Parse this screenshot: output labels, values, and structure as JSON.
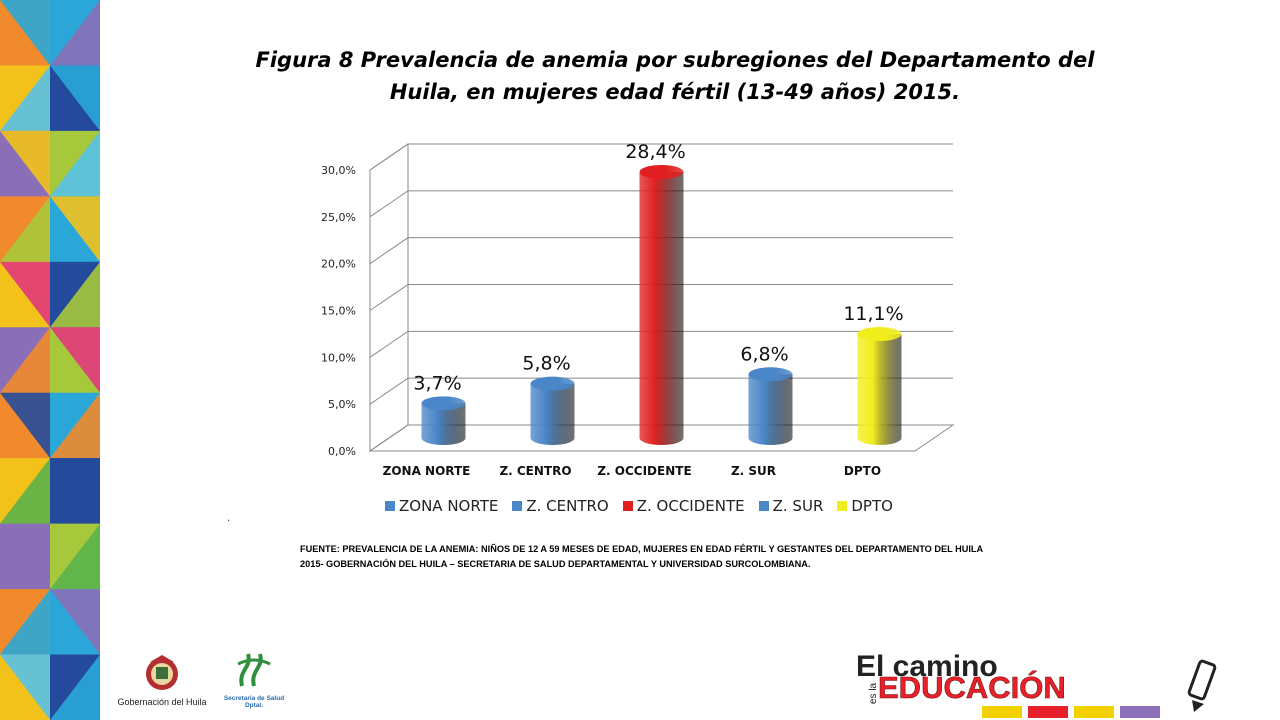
{
  "slide": {
    "title": "Figura 8 Prevalencia de anemia por subregiones del Departamento del Huila, en mujeres edad fértil (13-49 años) 2015.",
    "title_line1": "Figura 8 Prevalencia de anemia por subregiones del Departamento del",
    "title_line2": "Huila, en mujeres edad fértil (13-49 años) 2015.",
    "dot": ".",
    "source_line1": "FUENTE: PREVALENCIA  DE LA ANEMIA: NIÑOS DE 12 A 59 MESES DE EDAD, MUJERES EN EDAD FÉRTIL Y GESTANTES DEL DEPARTAMENTO DEL HUILA",
    "source_line2": "2015- GOBERNACIÓN DEL HUILA – SECRETARIA DE SALUD DEPARTAMENTAL Y UNIVERSIDAD SURCOLOMBIANA."
  },
  "logos": {
    "gobernacion_label": "Gobernación del Huila",
    "salud_label_line1": "Secretaria de Salud",
    "salud_label_line2": "Dptal.",
    "brand_line1": "El camino",
    "brand_es_la": "es la",
    "brand_line2": "EDUCACIÓN"
  },
  "chart_data": {
    "type": "bar",
    "categories": [
      "ZONA NORTE",
      "Z. CENTRO",
      "Z. OCCIDENTE",
      "Z. SUR",
      "DPTO"
    ],
    "values": [
      3.7,
      5.8,
      28.4,
      6.8,
      11.1
    ],
    "value_labels": [
      "3,7%",
      "5,8%",
      "28,4%",
      "6,8%",
      "11,1%"
    ],
    "colors": [
      "#4a86c8",
      "#4a86c8",
      "#e02020",
      "#4a86c8",
      "#f2ee1c"
    ],
    "legend": [
      "ZONA NORTE",
      "Z. CENTRO",
      "Z. OCCIDENTE",
      "Z. SUR",
      "DPTO"
    ],
    "ylim": [
      0,
      30
    ],
    "yticks": [
      "0,0%",
      "5,0%",
      "10,0%",
      "15,0%",
      "20,0%",
      "25,0%",
      "30,0%"
    ],
    "legend_position": "bottom",
    "grid": true,
    "style": "3d-cylinder"
  },
  "colors": {
    "blue": "#4a86c8",
    "red": "#e02020",
    "yellow": "#f2ee1c"
  }
}
